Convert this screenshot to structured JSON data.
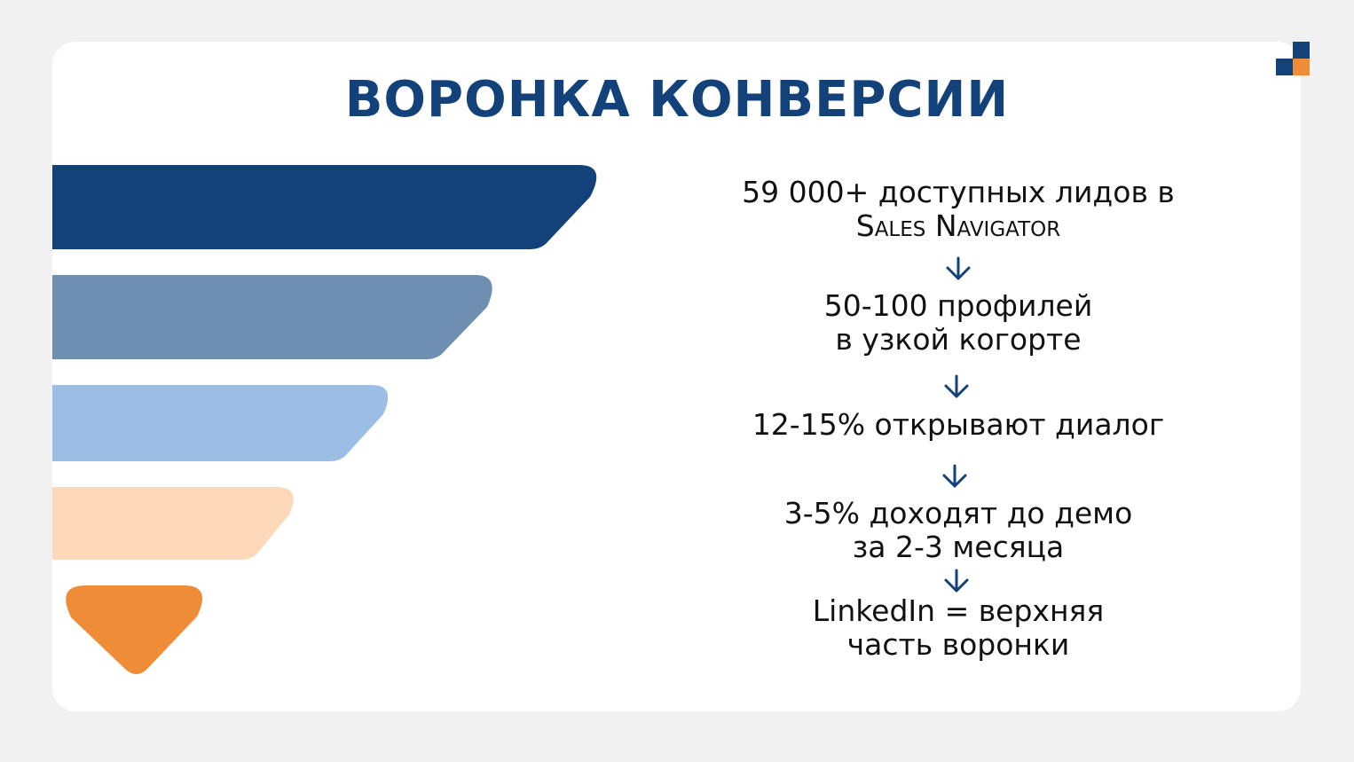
{
  "title": "ВОРОНКА КОНВЕРСИИ",
  "colors": {
    "title": "#13427a",
    "stage1": "#13427a",
    "stage2": "#6f8fb0",
    "stage3": "#9cbee4",
    "stage4": "#fdd9b9",
    "stage5": "#ef8c38",
    "arrow": "#13427a",
    "logo_dark": "#13427a",
    "logo_orange": "#ef8c38"
  },
  "steps": [
    {
      "lines": [
        "59 000+ доступных лидов в",
        "Sales Navigator"
      ]
    },
    {
      "lines": [
        "50-100 профилей",
        "в узкой когорте"
      ]
    },
    {
      "lines": [
        "12-15% открывают диалог"
      ]
    },
    {
      "lines": [
        "3-5% доходят до демо",
        "за 2-3 месяца"
      ]
    },
    {
      "lines": [
        "LinkedIn = верхняя",
        "часть воронки"
      ]
    }
  ],
  "icons": {
    "arrow": "arrow-down-icon",
    "logo": "brand-logo-icon"
  }
}
